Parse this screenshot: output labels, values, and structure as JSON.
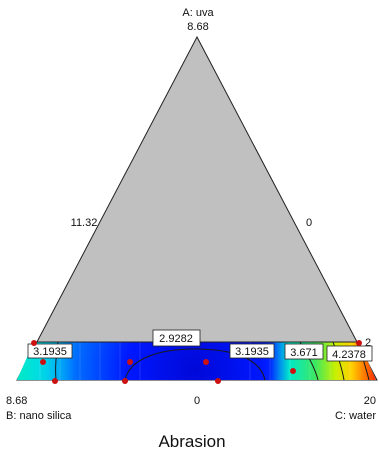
{
  "chart_data": {
    "type": "heatmap",
    "title": "Abrasion",
    "vertices": {
      "a": {
        "name": "A: uva",
        "value": "8.68"
      },
      "b": {
        "name": "B: nano silica",
        "value": "8.68"
      },
      "c": {
        "name": "C: water",
        "value": "20"
      }
    },
    "edge_labels": {
      "left": "11.32",
      "right": "0",
      "bottom": "0"
    },
    "corner_label": "2",
    "contour_labels": [
      "3.1935",
      "2.9282",
      "3.1935",
      "3.671",
      "4.2378"
    ],
    "design_point_count": 9,
    "colors": {
      "triangle_fill": "#c0c0c0",
      "low": "#0012ff",
      "mid": "#00e0f0",
      "high": "#ff2000",
      "point": "#cc1111"
    }
  }
}
